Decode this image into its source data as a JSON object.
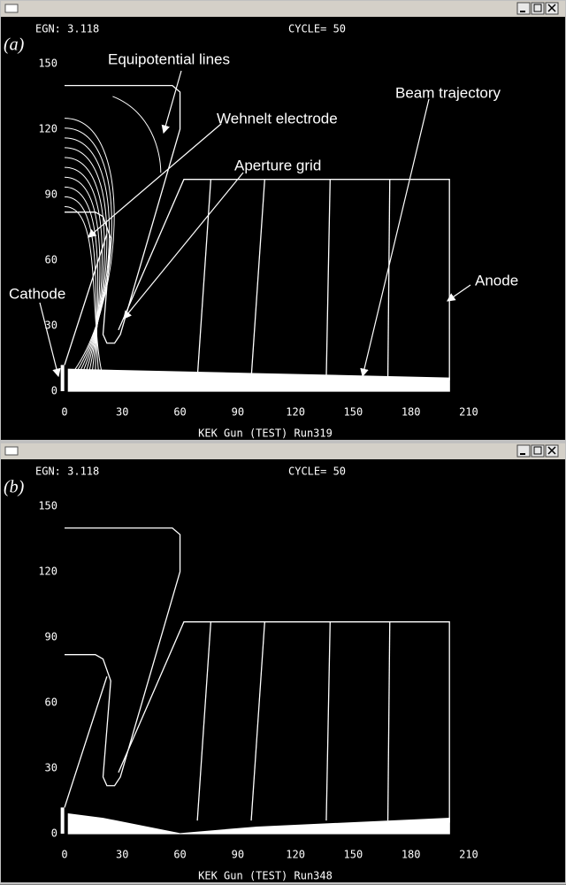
{
  "windows": [
    {
      "label": "(a)",
      "egn": "EGN: 3.118",
      "cycle": "CYCLE= 50",
      "yticks": [
        0,
        30,
        60,
        90,
        120,
        150
      ],
      "xticks": [
        0,
        30,
        60,
        90,
        120,
        150,
        180,
        210
      ],
      "footer": "KEK Gun (TEST) Run319",
      "annotations": [
        "Equipotential lines",
        "Wehnelt electrode",
        "Aperture grid",
        "Beam trajectory",
        "Anode",
        "Cathode"
      ]
    },
    {
      "label": "(b)",
      "egn": "EGN: 3.118",
      "cycle": "CYCLE= 50",
      "yticks": [
        0,
        30,
        60,
        90,
        120,
        150
      ],
      "xticks": [
        0,
        30,
        60,
        90,
        120,
        150,
        180,
        210
      ],
      "footer": "KEK Gun (TEST) Run348"
    }
  ]
}
